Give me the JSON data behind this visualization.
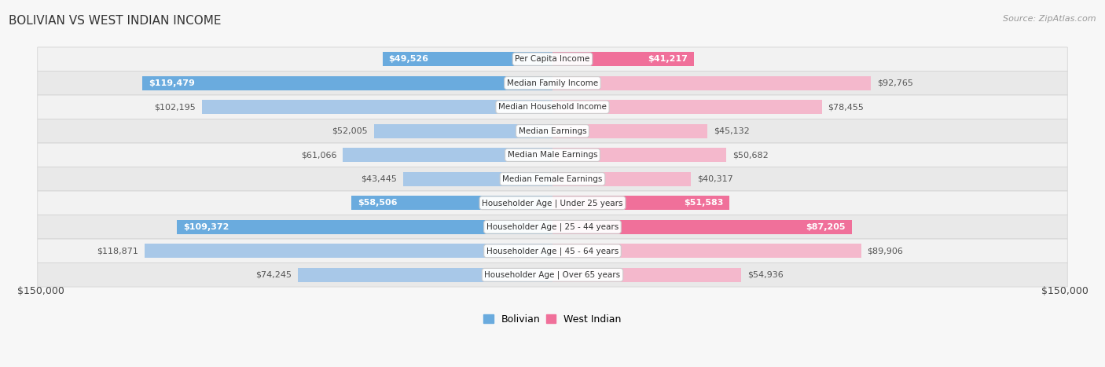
{
  "title": "BOLIVIAN VS WEST INDIAN INCOME",
  "source": "Source: ZipAtlas.com",
  "max_value": 150000,
  "categories": [
    "Per Capita Income",
    "Median Family Income",
    "Median Household Income",
    "Median Earnings",
    "Median Male Earnings",
    "Median Female Earnings",
    "Householder Age | Under 25 years",
    "Householder Age | 25 - 44 years",
    "Householder Age | 45 - 64 years",
    "Householder Age | Over 65 years"
  ],
  "bolivian": [
    49526,
    119479,
    102195,
    52005,
    61066,
    43445,
    58506,
    109372,
    118871,
    74245
  ],
  "west_indian": [
    41217,
    92765,
    78455,
    45132,
    50682,
    40317,
    51583,
    87205,
    89906,
    54936
  ],
  "bolivian_color_normal": "#a8c8e8",
  "bolivian_color_highlight": "#6aabde",
  "west_indian_color_normal": "#f4b8cc",
  "west_indian_color_highlight": "#f0709a",
  "bolivian_label_inside": [
    1,
    2,
    7,
    8
  ],
  "west_indian_label_inside": [
    1,
    7,
    8
  ],
  "background_color": "#f7f7f7",
  "row_bg_even": "#f0f0f0",
  "row_bg_odd": "#e8e8e8",
  "xlabel_left": "$150,000",
  "xlabel_right": "$150,000"
}
